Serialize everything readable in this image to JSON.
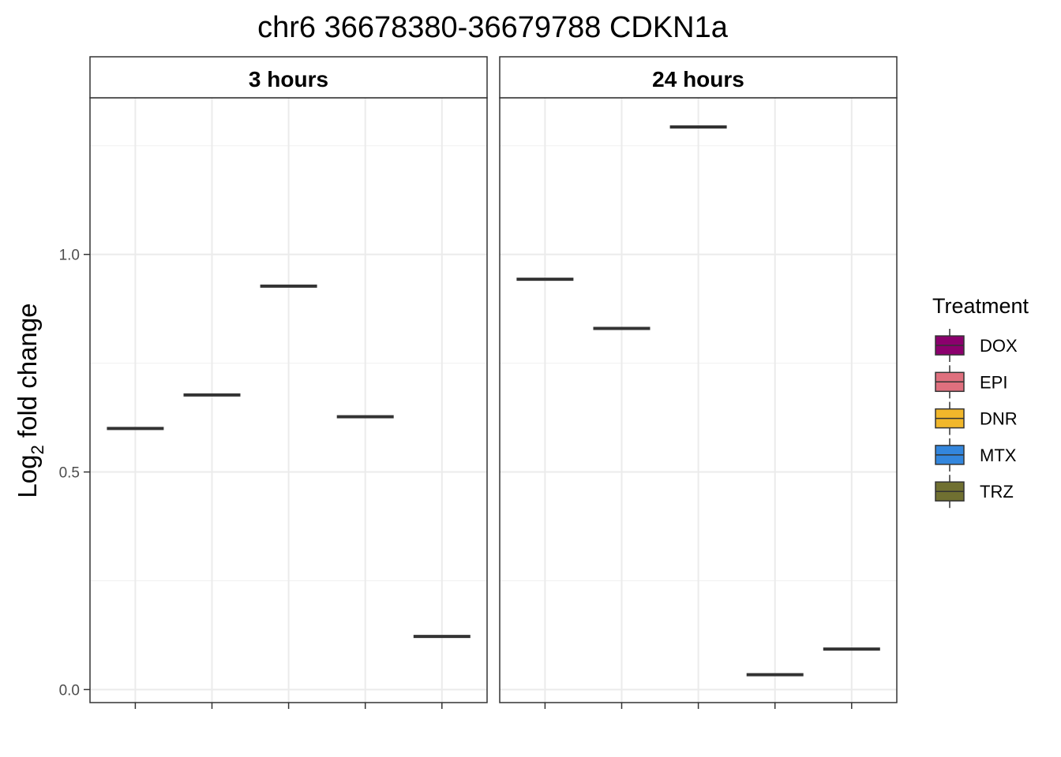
{
  "chart_data": {
    "type": "box",
    "title": "chr6  36678380-36679788 CDKN1a",
    "ylabel": {
      "main": "Log",
      "subscript": "2",
      "rest": " fold change"
    },
    "xlabel": "",
    "ylim": [
      -0.03,
      1.36
    ],
    "yticks": [
      0.0,
      0.5,
      1.0
    ],
    "ytick_labels": [
      "0.0",
      "0.5",
      "1.0"
    ],
    "y_minor_gridlines": [
      0.25,
      0.75,
      1.25
    ],
    "grid": true,
    "categories": [
      "DOX",
      "EPI",
      "DNR",
      "MTX",
      "TRZ"
    ],
    "x_tick_labels_visible": false,
    "panels": [
      {
        "label": "3 hours",
        "values": [
          0.6,
          0.677,
          0.927,
          0.627,
          0.122
        ]
      },
      {
        "label": "24 hours",
        "values": [
          0.943,
          0.83,
          1.293,
          0.034,
          0.093
        ]
      }
    ],
    "legend": {
      "title": "Treatment",
      "placement": "right",
      "items": [
        {
          "label": "DOX",
          "color": "#8B006D"
        },
        {
          "label": "EPI",
          "color": "#DF707E"
        },
        {
          "label": "DNR",
          "color": "#F1B72B"
        },
        {
          "label": "MTX",
          "color": "#3386DD"
        },
        {
          "label": "TRZ",
          "color": "#707031"
        }
      ]
    },
    "median_line_color": "#333333"
  }
}
